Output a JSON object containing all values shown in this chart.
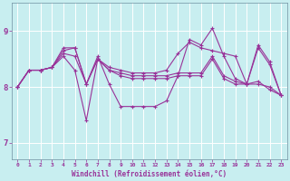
{
  "background_color": "#c8eef0",
  "grid_color": "#ffffff",
  "line_color": "#993399",
  "xlabel": "Windchill (Refroidissement éolien,°C)",
  "xlabel_color": "#993399",
  "tick_color": "#993399",
  "ylim": [
    6.7,
    9.5
  ],
  "xlim": [
    -0.5,
    23.5
  ],
  "yticks": [
    7,
    8,
    9
  ],
  "xticks": [
    0,
    1,
    2,
    3,
    4,
    5,
    6,
    7,
    8,
    9,
    10,
    11,
    12,
    13,
    14,
    15,
    16,
    17,
    18,
    19,
    20,
    21,
    22,
    23
  ],
  "series": [
    [
      8.0,
      8.3,
      8.3,
      8.35,
      8.55,
      8.3,
      7.4,
      8.5,
      8.3,
      8.2,
      8.15,
      8.15,
      8.15,
      8.15,
      8.2,
      8.2,
      8.2,
      8.5,
      8.15,
      8.05,
      8.05,
      8.05,
      8.0,
      7.85
    ],
    [
      8.0,
      8.3,
      8.3,
      8.35,
      8.6,
      8.55,
      8.05,
      8.5,
      8.3,
      8.25,
      8.2,
      8.2,
      8.2,
      8.2,
      8.25,
      8.25,
      8.25,
      8.55,
      8.2,
      8.1,
      8.05,
      8.1,
      7.95,
      7.85
    ],
    [
      8.0,
      8.3,
      8.3,
      8.35,
      8.65,
      8.7,
      8.05,
      8.5,
      8.35,
      8.3,
      8.25,
      8.25,
      8.25,
      8.3,
      8.6,
      8.8,
      8.7,
      8.65,
      8.6,
      8.55,
      8.05,
      8.7,
      8.4,
      7.85
    ],
    [
      8.0,
      8.3,
      8.3,
      8.35,
      8.7,
      8.7,
      8.05,
      8.55,
      8.05,
      7.65,
      7.65,
      7.65,
      7.65,
      7.75,
      8.2,
      8.85,
      8.75,
      9.05,
      8.55,
      8.15,
      8.05,
      8.75,
      8.45,
      7.85
    ]
  ]
}
